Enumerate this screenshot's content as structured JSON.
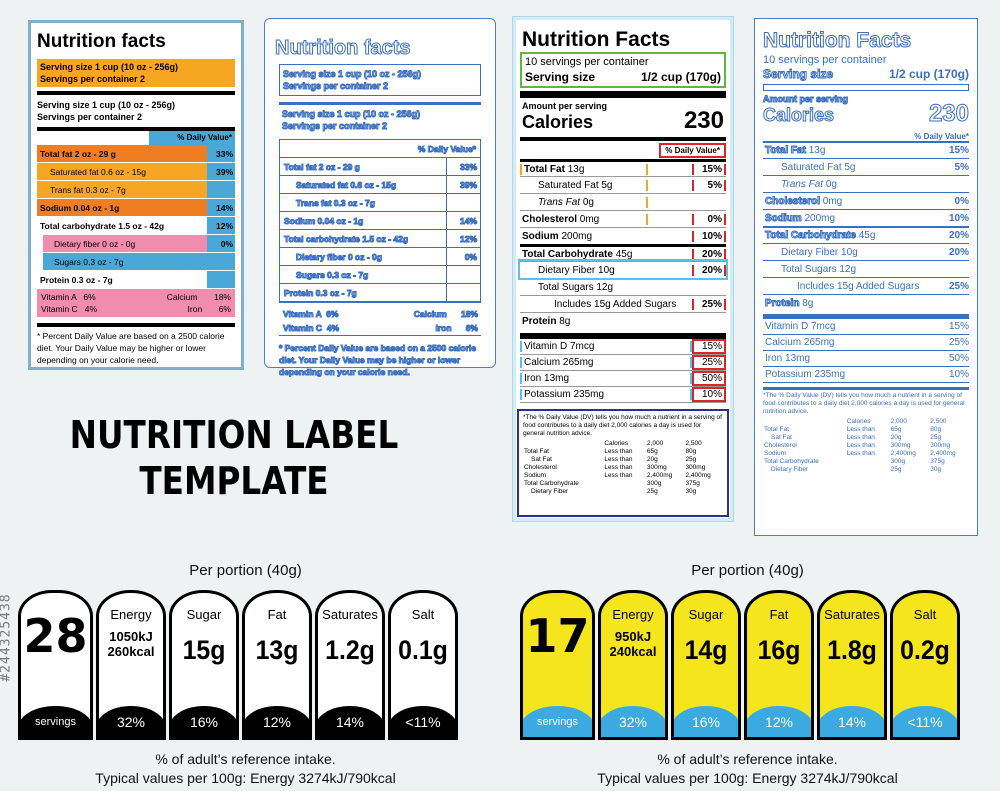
{
  "watermark_side": "#244325438",
  "headline": {
    "line1": "NUTRITION LABEL",
    "line2": "TEMPLATE"
  },
  "label1": {
    "title": "Nutrition facts",
    "serving_size": "Serving size 1 cup (10 oz - 256g)",
    "servings_per_container": "Servings per container 2",
    "dv_header": "% Daily Value*",
    "rows": [
      {
        "name": "Total fat 2 oz - 29 g",
        "pct": "33%"
      },
      {
        "name": "Saturated fat 0.6 oz - 15g",
        "pct": "39%"
      },
      {
        "name": "Trans fat 0.3 oz - 7g",
        "pct": ""
      },
      {
        "name": "Sodium 0.04 oz - 1g",
        "pct": "14%"
      },
      {
        "name": "Total carbohydrate 1.5 oz - 42g",
        "pct": "12%"
      },
      {
        "name": "Dietary fiber 0 oz - 0g",
        "pct": "0%"
      },
      {
        "name": "Sugars 0.3 oz - 7g",
        "pct": ""
      },
      {
        "name": "Protein 0.3 oz - 7g",
        "pct": ""
      }
    ],
    "vitamins": [
      {
        "left": "Vitamin A",
        "lv": "6%",
        "right": "Calcium",
        "rv": "18%"
      },
      {
        "left": "Vitamin C",
        "lv": "4%",
        "right": "Iron",
        "rv": "6%"
      }
    ],
    "footnote": "* Percent Daily Value are based on a 2500 calorie diet. Your Daily Value may be higher or lower depending on your calorie need.",
    "colors": {
      "orange": "#f6a623",
      "deep_orange": "#ef7d22",
      "blue": "#4aa8d8",
      "pink": "#f08cad"
    }
  },
  "label2": {
    "title": "Nutrition facts",
    "serving_size": "Serving size 1 cup (10 oz - 256g)",
    "servings_per_container": "Servings per container 2",
    "dv_header": "% Daily Value*",
    "rows": [
      {
        "name": "Total fat 2 oz - 29 g",
        "pct": "33%"
      },
      {
        "name": "Saturated fat 0.6 oz - 15g",
        "pct": "39%"
      },
      {
        "name": "Trans fat 0.3 oz - 7g",
        "pct": ""
      },
      {
        "name": "Sodium 0.04 oz - 1g",
        "pct": "14%"
      },
      {
        "name": "Total carbohydrate 1.5 oz - 42g",
        "pct": "12%"
      },
      {
        "name": "Dietary fiber 0 oz - 0g",
        "pct": "0%"
      },
      {
        "name": "Sugars 0.3 oz - 7g",
        "pct": ""
      },
      {
        "name": "Protein 0.3 oz - 7g",
        "pct": ""
      }
    ],
    "vitamins": [
      {
        "left": "Vitamin A",
        "lv": "6%",
        "right": "Calcium",
        "rv": "18%"
      },
      {
        "left": "Vitamin C",
        "lv": "4%",
        "right": "Iron",
        "rv": "6%"
      }
    ],
    "footnote": "* Percent Daily Value are based on a 2500 calorie diet. Your Daily Value may be higher or lower depending on your calorie need."
  },
  "label3": {
    "title": "Nutrition Facts",
    "servings_per_container": "10 servings per container",
    "serving_size_label": "Serving size",
    "serving_size_value": "1/2 cup (170g)",
    "amount_per_serving": "Amount per serving",
    "calories_label": "Calories",
    "calories_value": "230",
    "dv_header": "% Daily Value*",
    "rows": [
      {
        "name": "Total Fat",
        "amt": "13g",
        "pct": "15%",
        "bold": true,
        "indent": 0
      },
      {
        "name": "Saturated Fat",
        "amt": "5g",
        "pct": "5%",
        "bold": false,
        "indent": 1
      },
      {
        "name": "Trans Fat",
        "amt": "0g",
        "pct": "",
        "bold": false,
        "indent": 1,
        "italic": true
      },
      {
        "name": "Cholesterol",
        "amt": "0mg",
        "pct": "0%",
        "bold": true,
        "indent": 0
      },
      {
        "name": "Sodium",
        "amt": "200mg",
        "pct": "10%",
        "bold": true,
        "indent": 0
      },
      {
        "name": "Total Carbohydrate",
        "amt": "45g",
        "pct": "20%",
        "bold": true,
        "indent": 0
      },
      {
        "name": "Dietary Fiber",
        "amt": "10g",
        "pct": "20%",
        "bold": false,
        "indent": 1
      },
      {
        "name": "Total Sugars",
        "amt": "12g",
        "pct": "",
        "bold": false,
        "indent": 1
      },
      {
        "name": "Includes 15g Added Sugars",
        "amt": "",
        "pct": "25%",
        "bold": false,
        "indent": 2
      },
      {
        "name": "Protein",
        "amt": "8g",
        "pct": "",
        "bold": true,
        "indent": 0
      }
    ],
    "vitamins": [
      {
        "name": "Vitamin D 7mcg",
        "pct": "15%"
      },
      {
        "name": "Calcium 265mg",
        "pct": "25%"
      },
      {
        "name": "Iron 13mg",
        "pct": "50%"
      },
      {
        "name": "Potassium 235mg",
        "pct": "10%"
      }
    ],
    "footnote": "*The % Daily Value (DV) tells you how much a nutrient in a serving of food contributes to a daily diet 2,000 calories a day is used for general nutrition advice.",
    "table": {
      "header": [
        "",
        "Calories",
        "2,000",
        "2,500"
      ],
      "rows": [
        [
          "Total Fat",
          "Less than",
          "65g",
          "80g"
        ],
        [
          "Sat Fat",
          "Less than",
          "20g",
          "25g"
        ],
        [
          "Cholesterol",
          "Less than",
          "300mg",
          "300mg"
        ],
        [
          "Sodium",
          "Less than",
          "2,400mg",
          "2,400mg"
        ],
        [
          "Total Carbohydrate",
          "",
          "300g",
          "375g"
        ],
        [
          "Dietary Fiber",
          "",
          "25g",
          "30g"
        ]
      ]
    },
    "colors": {
      "green": "#63b346",
      "red": "#d9252c",
      "orange": "#f6a623",
      "lightblue": "#5bc0e8",
      "navy": "#2c2f8f"
    }
  },
  "label4": {
    "title": "Nutrition Facts",
    "servings_per_container": "10 servings per container",
    "serving_size_label": "Serving size",
    "serving_size_value": "1/2 cup (170g)",
    "amount_per_serving": "Amount per serving",
    "calories_label": "Calories",
    "calories_value": "230",
    "dv_header": "% Daily Value*",
    "rows": [
      {
        "name": "Total Fat",
        "amt": "13g",
        "pct": "15%",
        "bold": true,
        "indent": 0
      },
      {
        "name": "Saturated Fat",
        "amt": "5g",
        "pct": "5%",
        "bold": false,
        "indent": 1
      },
      {
        "name": "Trans Fat",
        "amt": "0g",
        "pct": "",
        "bold": false,
        "indent": 1,
        "italic": true
      },
      {
        "name": "Cholesterol",
        "amt": "0mg",
        "pct": "0%",
        "bold": true,
        "indent": 0
      },
      {
        "name": "Sodium",
        "amt": "200mg",
        "pct": "10%",
        "bold": true,
        "indent": 0
      },
      {
        "name": "Total Carbohydrate",
        "amt": "45g",
        "pct": "20%",
        "bold": true,
        "indent": 0
      },
      {
        "name": "Dietary Fiber",
        "amt": "10g",
        "pct": "20%",
        "bold": false,
        "indent": 1
      },
      {
        "name": "Total Sugars",
        "amt": "12g",
        "pct": "",
        "bold": false,
        "indent": 1
      },
      {
        "name": "Includes 15g Added Sugars",
        "amt": "",
        "pct": "25%",
        "bold": false,
        "indent": 2
      },
      {
        "name": "Protein",
        "amt": "8g",
        "pct": "",
        "bold": true,
        "indent": 0
      }
    ],
    "vitamins": [
      {
        "name": "Vitamin D 7mcg",
        "pct": "15%"
      },
      {
        "name": "Calcium 265mg",
        "pct": "25%"
      },
      {
        "name": "Iron 13mg",
        "pct": "50%"
      },
      {
        "name": "Potassium 235mg",
        "pct": "10%"
      }
    ],
    "footnote": "*The % Daily Value (DV) tells you how much a nutrient in a serving of food contributes to a daily diet 2,000 calories a day is used for general nutrition advice.",
    "table": {
      "header": [
        "",
        "Calories",
        "2,000",
        "2,500"
      ],
      "rows": [
        [
          "Total Fat",
          "Less than",
          "65g",
          "80g"
        ],
        [
          "Sat Fat",
          "Less than",
          "20g",
          "25g"
        ],
        [
          "Cholesterol",
          "Less than",
          "300mg",
          "300mg"
        ],
        [
          "Sodium",
          "Less than",
          "2,400mg",
          "2,400mg"
        ],
        [
          "Total Carbohydrate",
          "",
          "300g",
          "375g"
        ],
        [
          "Dietary Fiber",
          "",
          "25g",
          "30g"
        ]
      ]
    }
  },
  "traffic_bw": {
    "per_portion": "Per portion (40g)",
    "servings_number": "28",
    "servings_label": "servings",
    "tiles": [
      {
        "label": "Energy",
        "value": "1050kJ\n260kcal",
        "pct": "32%",
        "energy": true
      },
      {
        "label": "Sugar",
        "value": "15g",
        "pct": "16%"
      },
      {
        "label": "Fat",
        "value": "13g",
        "pct": "12%"
      },
      {
        "label": "Saturates",
        "value": "1.2g",
        "pct": "14%"
      },
      {
        "label": "Salt",
        "value": "0.1g",
        "pct": "<11%"
      }
    ],
    "note1": "% of adult’s reference intake.",
    "note2": "Typical values per 100g: Energy 3274kJ/790kcal"
  },
  "traffic_color": {
    "per_portion": "Per portion (40g)",
    "servings_number": "17",
    "servings_label": "servings",
    "tiles": [
      {
        "label": "Energy",
        "value": "950kJ\n240kcal",
        "pct": "32%",
        "energy": true
      },
      {
        "label": "Sugar",
        "value": "14g",
        "pct": "16%"
      },
      {
        "label": "Fat",
        "value": "16g",
        "pct": "12%"
      },
      {
        "label": "Saturates",
        "value": "1.8g",
        "pct": "14%"
      },
      {
        "label": "Salt",
        "value": "0.2g",
        "pct": "<11%"
      }
    ],
    "note1": "% of adult’s reference intake.",
    "note2": "Typical values per 100g: Energy 3274kJ/790kcal",
    "colors": {
      "yellow": "#f5e51c",
      "blue": "#3aaae0"
    }
  }
}
